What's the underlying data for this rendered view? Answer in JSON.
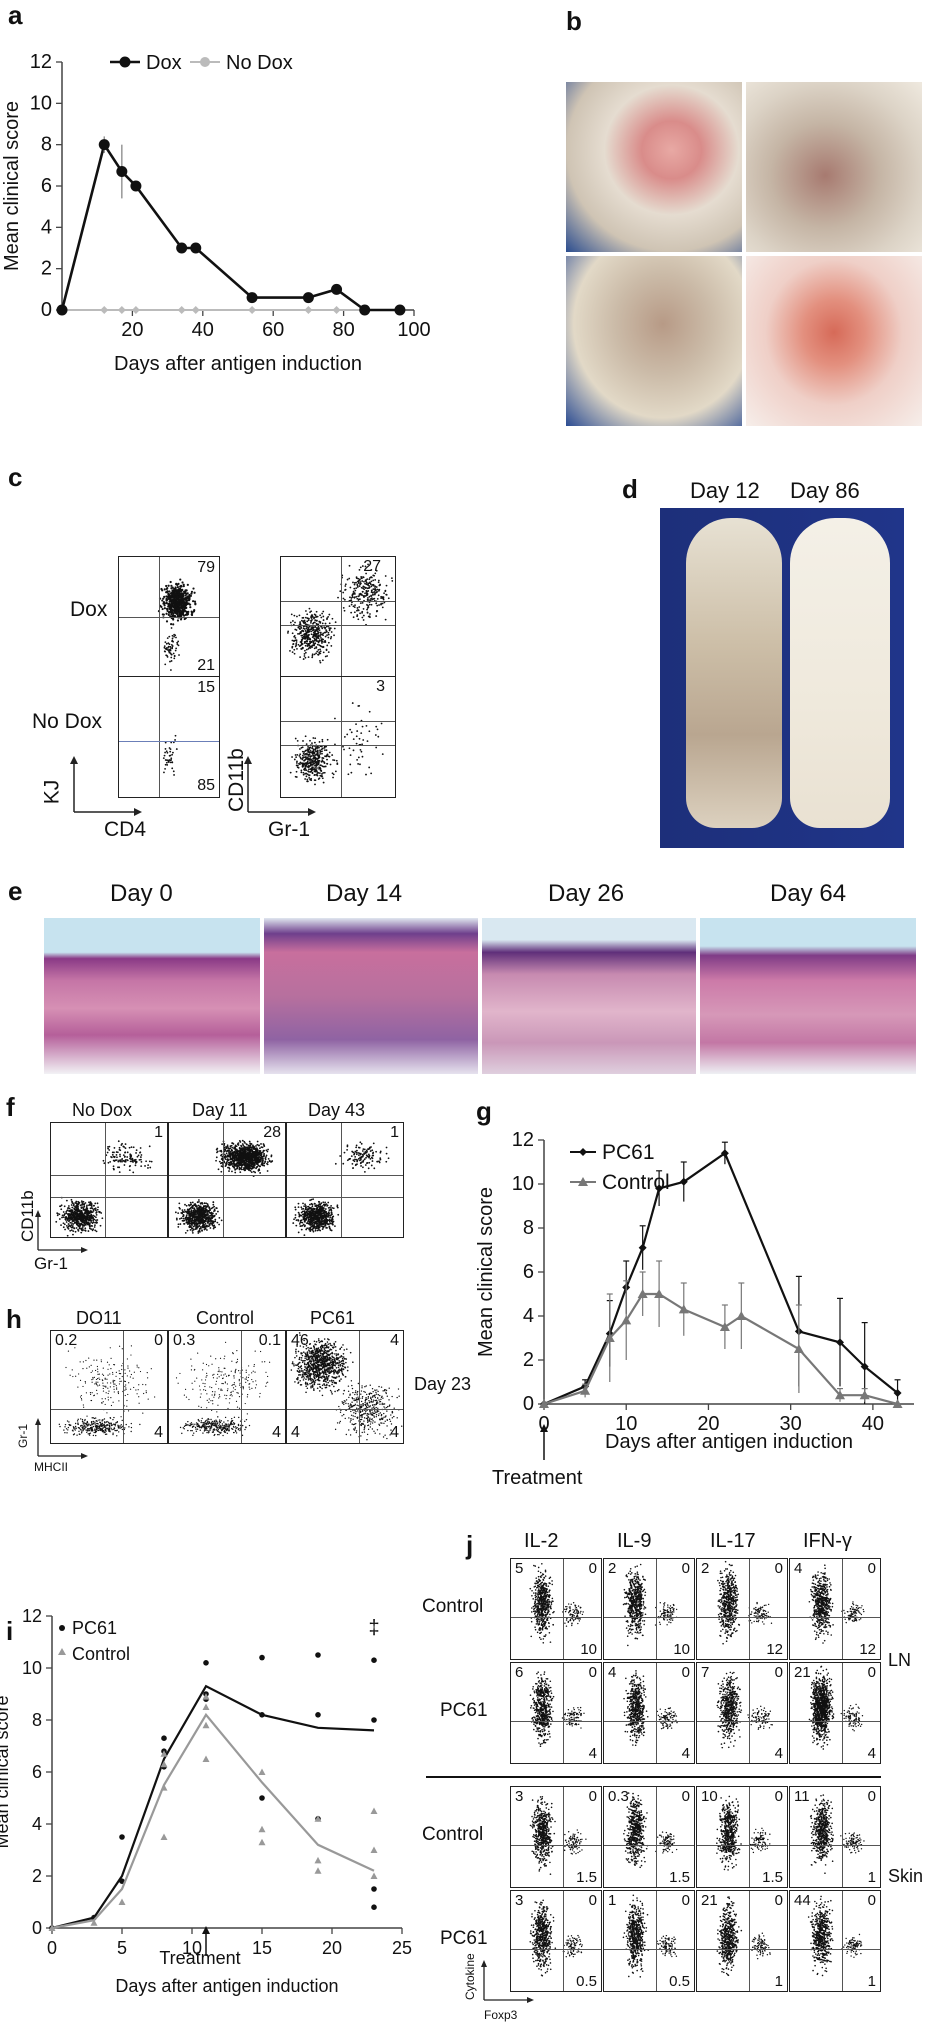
{
  "panel_labels": {
    "a": "a",
    "b": "b",
    "c": "c",
    "d": "d",
    "e": "e",
    "f": "f",
    "g": "g",
    "h": "h",
    "i": "i",
    "j": "j"
  },
  "panel_a": {
    "chart_data": {
      "type": "line",
      "xlabel": "Days after antigen induction",
      "ylabel": "Mean clinical score",
      "xlim": [
        0,
        100
      ],
      "ylim": [
        0,
        12
      ],
      "xticks": [
        20,
        40,
        60,
        80,
        100
      ],
      "yticks": [
        0,
        2,
        4,
        6,
        8,
        10,
        12
      ],
      "legend_position": "top",
      "series": [
        {
          "name": "Dox",
          "color": "#111111",
          "x": [
            0,
            12,
            17,
            21,
            34,
            38,
            54,
            70,
            78,
            86,
            96
          ],
          "y": [
            0,
            8,
            6.7,
            6,
            3,
            3,
            0.6,
            0.6,
            1,
            0,
            0
          ],
          "err": [
            0,
            0.4,
            1.3,
            0,
            0,
            0,
            0,
            0,
            0.2,
            0,
            0
          ]
        },
        {
          "name": "No Dox",
          "color": "#bbbbbb",
          "x": [
            0,
            12,
            17,
            21,
            34,
            38,
            54,
            70,
            78,
            86
          ],
          "y": [
            0,
            0,
            0,
            0,
            0,
            0,
            0,
            0,
            0,
            0
          ],
          "err": [
            0,
            0,
            0,
            0,
            0,
            0,
            0,
            0,
            0,
            0
          ]
        }
      ]
    }
  },
  "panel_c": {
    "rows": [
      "Dox",
      "No Dox"
    ],
    "kj_values": [
      {
        "top": "79",
        "bottom": "21"
      },
      {
        "top": "15",
        "bottom": "85"
      }
    ],
    "cd11b_values": [
      "27",
      "3"
    ],
    "axis1_y": "KJ",
    "axis1_x": "CD4",
    "axis2_y": "CD11b",
    "axis2_x": "Gr-1"
  },
  "panel_d": {
    "labels": [
      "Day 12",
      "Day 86"
    ]
  },
  "panel_e": {
    "labels": [
      "Day 0",
      "Day 14",
      "Day 26",
      "Day 64"
    ]
  },
  "panel_f": {
    "titles": [
      "No Dox",
      "Day 11",
      "Day 43"
    ],
    "values": [
      "1",
      "28",
      "1"
    ],
    "axis_y": "CD11b",
    "axis_x": "Gr-1"
  },
  "panel_g": {
    "chart_data": {
      "type": "line",
      "xlabel": "Days after antigen induction",
      "ylabel": "Mean clinical score",
      "xlim": [
        0,
        45
      ],
      "ylim": [
        0,
        12
      ],
      "xticks": [
        0,
        10,
        20,
        30,
        40
      ],
      "yticks": [
        0,
        2,
        4,
        6,
        8,
        10,
        12
      ],
      "legend_position": "top-left",
      "annotation": "Treatment",
      "series": [
        {
          "name": "PC61",
          "color": "#111111",
          "marker": "diamond",
          "x": [
            0,
            5,
            8,
            10,
            12,
            14,
            17,
            22,
            31,
            36,
            39,
            43
          ],
          "y": [
            0,
            0.8,
            3.2,
            5.3,
            7.1,
            9.8,
            10.1,
            11.4,
            3.3,
            2.8,
            1.7,
            0.5
          ],
          "err": [
            0,
            0.3,
            1.5,
            1.2,
            1.0,
            0.8,
            0.9,
            0.5,
            2.5,
            2.0,
            2.0,
            0.6
          ]
        },
        {
          "name": "Control",
          "color": "#777777",
          "marker": "triangle",
          "x": [
            0,
            5,
            8,
            10,
            12,
            14,
            17,
            22,
            24,
            31,
            36,
            39,
            43
          ],
          "y": [
            0,
            0.6,
            3,
            3.8,
            5,
            5,
            4.3,
            3.5,
            4,
            2.5,
            0.4,
            0.4,
            0
          ],
          "err": [
            0,
            0.3,
            2.0,
            1.8,
            1.0,
            1.5,
            1.2,
            1.0,
            1.5,
            2.0,
            0.3,
            0.3,
            0
          ]
        }
      ]
    }
  },
  "panel_h": {
    "titles": [
      "DO11",
      "Control",
      "PC61"
    ],
    "values": [
      [
        "0.2",
        "0",
        "4"
      ],
      [
        "0.3",
        "0.1",
        "4"
      ],
      [
        "46",
        "4",
        "4",
        "4"
      ]
    ],
    "side_label": "Day 23",
    "axis_y": "Gr-1",
    "axis_x": "MHCII"
  },
  "panel_i": {
    "chart_data": {
      "type": "scatter",
      "xlabel": "Days after antigen induction",
      "ylabel": "Mean clinical score",
      "xlim": [
        0,
        25
      ],
      "ylim": [
        0,
        12
      ],
      "xticks": [
        0,
        5,
        10,
        15,
        20,
        25
      ],
      "yticks": [
        0,
        2,
        4,
        6,
        8,
        10,
        12
      ],
      "legend_position": "top-left",
      "annotation": "Treatment",
      "significance": "‡",
      "series": [
        {
          "name": "PC61",
          "color": "#111111",
          "x": [
            0,
            3,
            5,
            8,
            11,
            15,
            19,
            23
          ],
          "y": [
            0,
            0.4,
            2,
            6.5,
            9.3,
            8.2,
            7.7,
            7.6
          ],
          "points": [
            [
              0,
              0
            ],
            [
              3,
              0.4
            ],
            [
              5,
              3.5
            ],
            [
              5,
              1.8
            ],
            [
              8,
              7.3
            ],
            [
              8,
              6.8
            ],
            [
              8,
              6.2
            ],
            [
              11,
              10.2
            ],
            [
              11,
              9.0
            ],
            [
              11,
              8.8
            ],
            [
              15,
              10.4
            ],
            [
              15,
              8.2
            ],
            [
              15,
              5.0
            ],
            [
              19,
              10.5
            ],
            [
              19,
              8.2
            ],
            [
              19,
              4.2
            ],
            [
              23,
              10.3
            ],
            [
              23,
              8.0
            ],
            [
              23,
              1.5
            ],
            [
              23,
              0.8
            ]
          ]
        },
        {
          "name": "Control",
          "color": "#999999",
          "x": [
            0,
            3,
            5,
            8,
            11,
            15,
            19,
            23
          ],
          "y": [
            0,
            0.3,
            1.5,
            5.5,
            8.2,
            5.6,
            3.2,
            2.2
          ],
          "points": [
            [
              0,
              0
            ],
            [
              3,
              0.2
            ],
            [
              5,
              1.0
            ],
            [
              8,
              6.7
            ],
            [
              8,
              6.3
            ],
            [
              8,
              3.5
            ],
            [
              8,
              5.4
            ],
            [
              11,
              8.9
            ],
            [
              11,
              8.5
            ],
            [
              11,
              7.8
            ],
            [
              11,
              6.5
            ],
            [
              15,
              6.0
            ],
            [
              15,
              3.8
            ],
            [
              15,
              3.3
            ],
            [
              19,
              4.2
            ],
            [
              19,
              2.6
            ],
            [
              19,
              2.2
            ],
            [
              23,
              4.5
            ],
            [
              23,
              3.0
            ],
            [
              23,
              2.0
            ]
          ]
        }
      ]
    }
  },
  "panel_j": {
    "columns": [
      "IL-2",
      "IL-9",
      "IL-17",
      "IFN-γ"
    ],
    "rows": [
      {
        "label": "Control",
        "values": [
          [
            "5",
            "0",
            "10"
          ],
          [
            "2",
            "0",
            "10"
          ],
          [
            "2",
            "0",
            "12"
          ],
          [
            "4",
            "0",
            "12"
          ]
        ]
      },
      {
        "label": "PC61",
        "values": [
          [
            "6",
            "0",
            "4"
          ],
          [
            "4",
            "0",
            "4"
          ],
          [
            "7",
            "0",
            "4"
          ],
          [
            "21",
            "0",
            "4"
          ]
        ]
      },
      {
        "label": "Control",
        "values": [
          [
            "3",
            "0",
            "1.5"
          ],
          [
            "0.3",
            "0",
            "1.5"
          ],
          [
            "10",
            "0",
            "1.5"
          ],
          [
            "11",
            "0",
            "1"
          ]
        ]
      },
      {
        "label": "PC61",
        "values": [
          [
            "3",
            "0",
            "0.5"
          ],
          [
            "1",
            "0",
            "0.5"
          ],
          [
            "21",
            "0",
            "1"
          ],
          [
            "44",
            "0",
            "1"
          ]
        ]
      }
    ],
    "group_labels": [
      "LN",
      "Skin"
    ],
    "axis_y": "Cytokine",
    "axis_x": "Foxp3"
  }
}
